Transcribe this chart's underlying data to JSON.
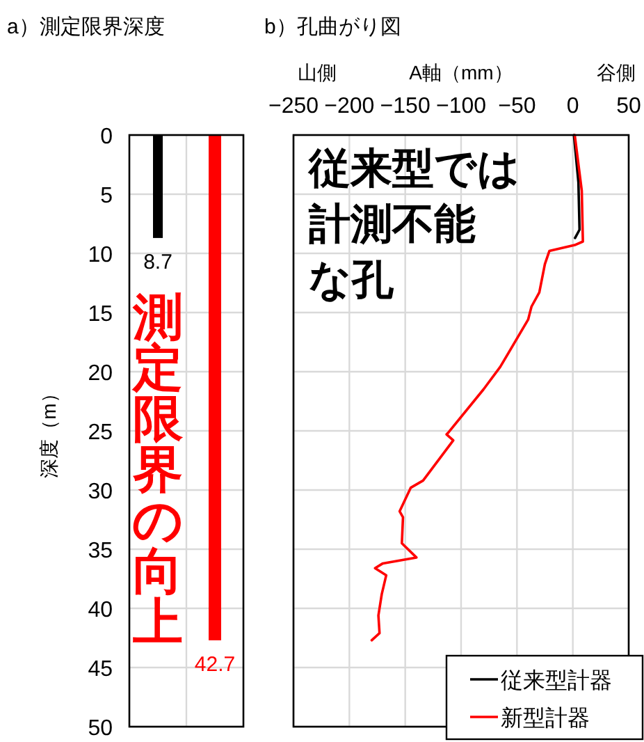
{
  "chart_data": [
    {
      "type": "bar",
      "title": "a）測定限界深度",
      "ylabel": "深度（m）",
      "categories": [
        null,
        null
      ],
      "values": [
        8.7,
        42.7
      ],
      "colors": [
        "#000000",
        "#ff0000"
      ],
      "data_labels": true,
      "ylim": [
        50,
        0
      ],
      "yticks": [
        0,
        5,
        10,
        15,
        20,
        25,
        30,
        35,
        40,
        45,
        50
      ],
      "grid": true,
      "tick_labels": "y",
      "annotations": [
        "測定限界の向上"
      ]
    },
    {
      "type": "line",
      "title": "b）孔曲がり図",
      "xlabel": "A軸（mm）",
      "xlim": [
        -250,
        50
      ],
      "xticks": [
        {
          "value": -250,
          "label": "−250"
        },
        {
          "value": -200,
          "label": "−200"
        },
        {
          "value": -150,
          "label": "−150"
        },
        {
          "value": -100,
          "label": "−100"
        },
        {
          "value": -50,
          "label": "−50"
        },
        0,
        50
      ],
      "ylim": [
        50,
        0
      ],
      "yticks": [
        0,
        5,
        10,
        15,
        20,
        25,
        30,
        35,
        40,
        45,
        50
      ],
      "grid": true,
      "tick_labels": "x",
      "legend": "bottom right",
      "marker": "none",
      "line_style": "solid",
      "series": [
        {
          "name": "従来型計器",
          "color": "#000000",
          "x": [
            1,
            5,
            6,
            2
          ],
          "values": [
            0,
            4,
            8,
            8.7
          ]
        },
        {
          "name": "新型計器",
          "color": "#ff0000",
          "x": [
            1.7,
            8,
            9,
            1.7,
            -21,
            -25,
            -30,
            -37,
            -40,
            -65,
            -80,
            -111,
            -113,
            -107,
            -134,
            -145,
            -155,
            -152,
            -153,
            -140,
            -170,
            -177,
            -167,
            -171,
            -174,
            -173,
            -180
          ],
          "values": [
            0,
            4.7,
            9,
            9.3,
            9.8,
            10.9,
            13.3,
            14.5,
            15.6,
            19.6,
            21.5,
            25.1,
            25.3,
            25.8,
            29.2,
            29.8,
            31.8,
            32.3,
            34.5,
            35.7,
            36.2,
            36.6,
            37.2,
            38.8,
            40.6,
            42.1,
            42.7
          ]
        }
      ],
      "annotations": [
        "山側",
        "谷側",
        "従来型では",
        "計測不能",
        "な孔"
      ]
    }
  ]
}
